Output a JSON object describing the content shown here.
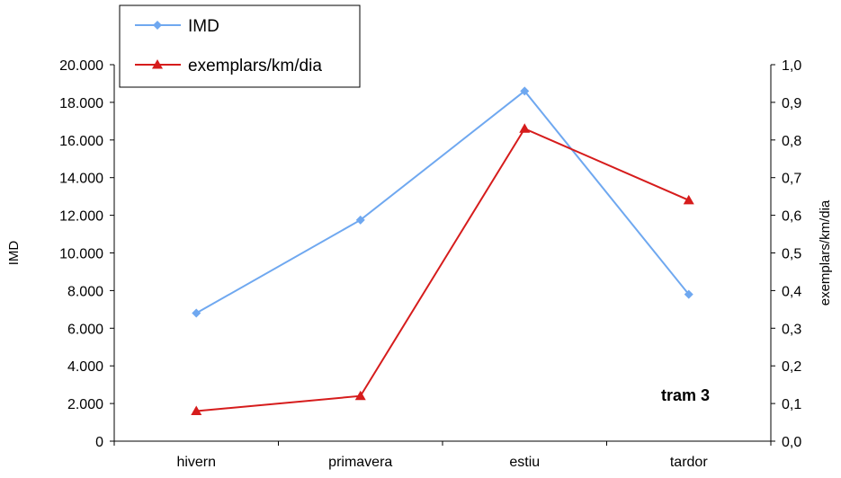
{
  "chart_data": {
    "type": "line",
    "categories": [
      "hivern",
      "primavera",
      "estiu",
      "tardor"
    ],
    "series": [
      {
        "name": "IMD",
        "axis": "left",
        "color": "#6fa8f0",
        "marker": "diamond",
        "values": [
          6800,
          11750,
          18600,
          7800
        ]
      },
      {
        "name": "exemplars/km/dia",
        "axis": "right",
        "color": "#d61c1c",
        "marker": "triangle",
        "values": [
          0.08,
          0.12,
          0.83,
          0.64
        ]
      }
    ],
    "ylabel": "IMD",
    "y2label": "exemplars/km/dia",
    "ylim": [
      0,
      20000
    ],
    "y2lim": [
      0,
      1.0
    ],
    "yticks": [
      "0",
      "2.000",
      "4.000",
      "6.000",
      "8.000",
      "10.000",
      "12.000",
      "14.000",
      "16.000",
      "18.000",
      "20.000"
    ],
    "y2ticks": [
      "0,0",
      "0,1",
      "0,2",
      "0,3",
      "0,4",
      "0,5",
      "0,6",
      "0,7",
      "0,8",
      "0,9",
      "1,0"
    ],
    "annotation": "tram 3",
    "grid": false,
    "legend_position": "top-left"
  }
}
